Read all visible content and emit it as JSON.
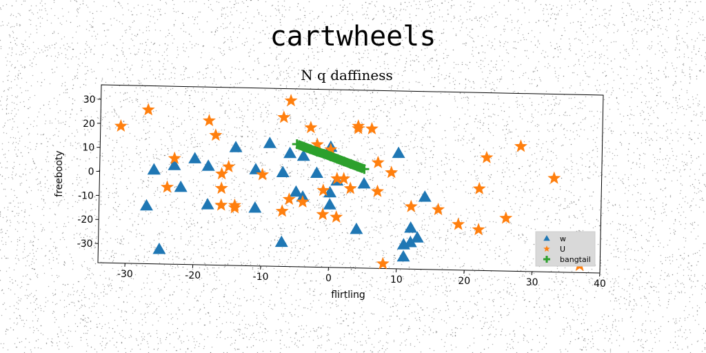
{
  "figure": {
    "suptitle": "cartwheels"
  },
  "chart_data": {
    "type": "scatter",
    "title": "N q daffiness",
    "xlabel": "flirtling",
    "ylabel": "freebooty",
    "xlim": [
      -34,
      40
    ],
    "ylim": [
      -38,
      36
    ],
    "xticks": [
      -30,
      -20,
      -10,
      0,
      10,
      20,
      30,
      40
    ],
    "yticks": [
      -30,
      -20,
      -10,
      0,
      10,
      20,
      30
    ],
    "grid": false,
    "legend_position": "lower-right",
    "series": [
      {
        "name": "w",
        "marker": "triangle",
        "color": "#1f77b4",
        "x": [
          -26,
          -25,
          -23,
          -22,
          -20,
          -18,
          -18,
          -27,
          -26,
          -14,
          -11,
          -11,
          -9,
          -7,
          -7,
          -6,
          -5,
          -4,
          -4,
          -2,
          0,
          0,
          0,
          1,
          4,
          5,
          10,
          11,
          11,
          12,
          12,
          13,
          14
        ],
        "y": [
          1,
          -32,
          3,
          -6,
          6,
          3,
          -13,
          -14,
          1,
          11,
          -14,
          2,
          13,
          -28,
          1,
          9,
          -7,
          8,
          -9,
          1,
          12,
          -7,
          -12,
          -2,
          -22,
          -3,
          10,
          -28,
          -33,
          -21,
          -27,
          -25,
          -8
        ]
      },
      {
        "name": "U",
        "marker": "star",
        "color": "#ff7f0e",
        "x": [
          -31,
          -27,
          -24,
          -23,
          -18,
          -17,
          -16,
          -16,
          -16,
          -15,
          -14,
          -14,
          -10,
          -7,
          -7,
          -6,
          -6,
          -4,
          -3,
          -2,
          -1,
          -1,
          0,
          1,
          1,
          2,
          3,
          4,
          4,
          6,
          7,
          7,
          8,
          9,
          12,
          16,
          19,
          22,
          22,
          23,
          26,
          28,
          33,
          37
        ],
        "y": [
          19,
          26,
          -6,
          6,
          22,
          16,
          0,
          -6,
          -13,
          3,
          -13,
          -14,
          0,
          -15,
          24,
          -10,
          31,
          -11,
          20,
          13,
          -6,
          -16,
          11,
          -1,
          -17,
          -1,
          -5,
          20,
          21,
          20,
          -6,
          6,
          -36,
          2,
          -12,
          -13,
          -19,
          -4,
          -21,
          9,
          -16,
          14,
          1,
          -35
        ]
      },
      {
        "name": "bangtail",
        "marker": "plus",
        "color": "#2ca02c",
        "x": [
          -5,
          -4,
          -3,
          -2,
          -1,
          0,
          1,
          2,
          3,
          4,
          5
        ],
        "y": [
          13,
          12,
          11,
          10,
          9.2,
          8.2,
          7.2,
          6.2,
          5.2,
          4.2,
          3.2
        ]
      }
    ]
  }
}
